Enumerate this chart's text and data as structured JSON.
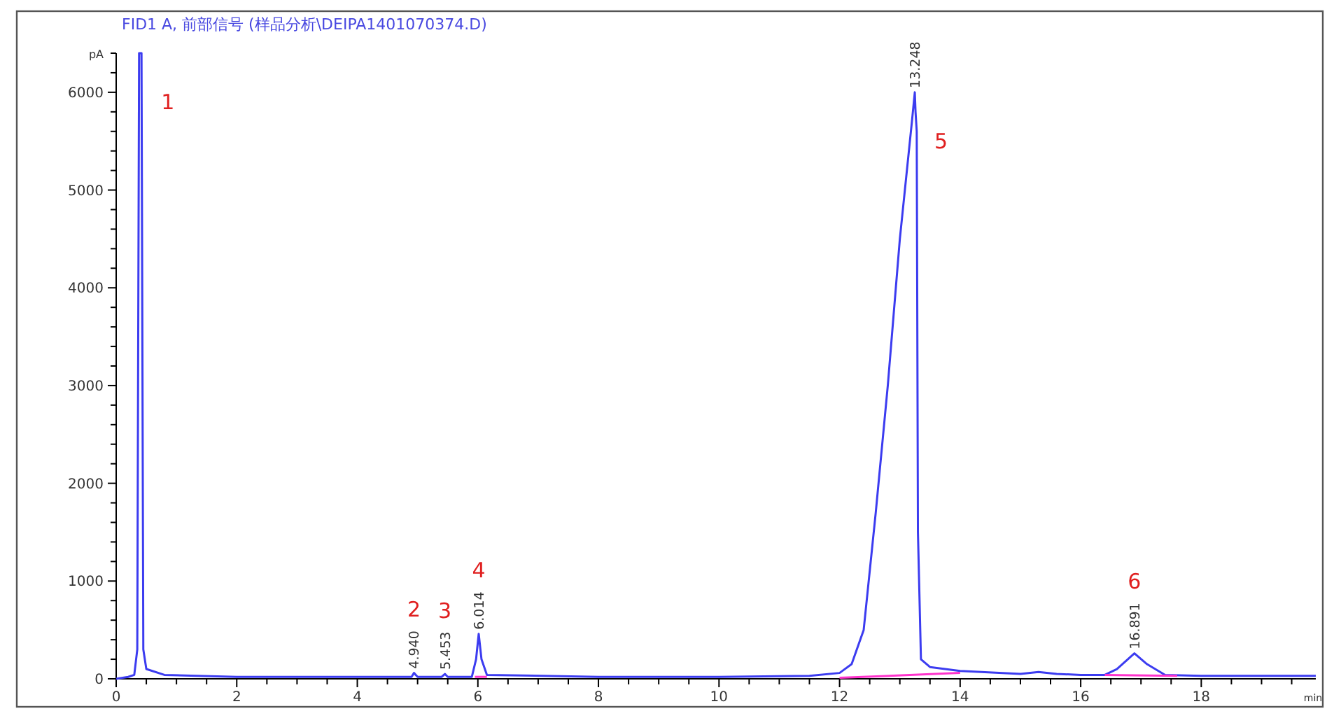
{
  "chart_data": {
    "type": "line",
    "title": "FID1 A, 前部信号 (样品分析\\DEIPA1401070374.D)",
    "xlabel": "min",
    "ylabel": "pA",
    "xlim": [
      0,
      19.9
    ],
    "ylim": [
      0,
      6400
    ],
    "xticks": [
      0,
      {
        "value": 0.5,
        "label": null
      },
      {
        "value": 1,
        "label": null
      },
      {
        "value": 1.5,
        "label": null
      },
      2,
      {
        "value": 2.5,
        "label": null
      },
      {
        "value": 3,
        "label": null
      },
      {
        "value": 3.5,
        "label": null
      },
      4,
      {
        "value": 4.5,
        "label": null
      },
      {
        "value": 5,
        "label": null
      },
      {
        "value": 5.5,
        "label": null
      },
      6,
      {
        "value": 6.5,
        "label": null
      },
      {
        "value": 7,
        "label": null
      },
      {
        "value": 7.5,
        "label": null
      },
      8,
      {
        "value": 8.5,
        "label": null
      },
      {
        "value": 9,
        "label": null
      },
      {
        "value": 9.5,
        "label": null
      },
      10,
      {
        "value": 10.5,
        "label": null
      },
      {
        "value": 11,
        "label": null
      },
      {
        "value": 11.5,
        "label": null
      },
      12,
      {
        "value": 12.5,
        "label": null
      },
      {
        "value": 13,
        "label": null
      },
      {
        "value": 13.5,
        "label": null
      },
      14,
      {
        "value": 14.5,
        "label": null
      },
      {
        "value": 15,
        "label": null
      },
      {
        "value": 15.5,
        "label": null
      },
      16,
      {
        "value": 16.5,
        "label": null
      },
      {
        "value": 17,
        "label": null
      },
      {
        "value": 17.5,
        "label": null
      },
      18,
      {
        "value": 18.5,
        "label": null
      },
      {
        "value": 19,
        "label": null
      },
      {
        "value": 19.5,
        "label": null
      }
    ],
    "yticks": [
      0,
      {
        "value": 200,
        "label": null
      },
      {
        "value": 400,
        "label": null
      },
      {
        "value": 600,
        "label": null
      },
      {
        "value": 800,
        "label": null
      },
      1000,
      {
        "value": 1200,
        "label": null
      },
      {
        "value": 1400,
        "label": null
      },
      {
        "value": 1600,
        "label": null
      },
      {
        "value": 1800,
        "label": null
      },
      2000,
      {
        "value": 2200,
        "label": null
      },
      {
        "value": 2400,
        "label": null
      },
      {
        "value": 2600,
        "label": null
      },
      {
        "value": 2800,
        "label": null
      },
      3000,
      {
        "value": 3200,
        "label": null
      },
      {
        "value": 3400,
        "label": null
      },
      {
        "value": 3600,
        "label": null
      },
      {
        "value": 3800,
        "label": null
      },
      4000,
      {
        "value": 4200,
        "label": null
      },
      {
        "value": 4400,
        "label": null
      },
      {
        "value": 4600,
        "label": null
      },
      {
        "value": 4800,
        "label": null
      },
      5000,
      {
        "value": 5200,
        "label": null
      },
      {
        "value": 5400,
        "label": null
      },
      {
        "value": 5600,
        "label": null
      },
      {
        "value": 5800,
        "label": null
      },
      6000,
      {
        "value": 6200,
        "label": null
      },
      {
        "value": 6400,
        "label": null
      }
    ],
    "grid": false,
    "series": [
      {
        "color": "#3c3cf0",
        "x": [
          0,
          0.2,
          0.3,
          0.35,
          0.38,
          0.42,
          0.45,
          0.5,
          0.8,
          2,
          4,
          4.9,
          4.94,
          5.0,
          5.4,
          5.453,
          5.5,
          5.9,
          5.97,
          6.014,
          6.06,
          6.15,
          8,
          10,
          11.5,
          12.0,
          12.2,
          12.4,
          12.6,
          12.8,
          13.0,
          13.2,
          13.248,
          13.26,
          13.28,
          13.3,
          13.35,
          13.5,
          14,
          15,
          15.3,
          15.6,
          16,
          16.4,
          16.6,
          16.891,
          17.1,
          17.4,
          18,
          19.9
        ],
        "values": [
          0,
          20,
          40,
          300,
          6400,
          6400,
          300,
          100,
          40,
          20,
          20,
          20,
          60,
          20,
          20,
          50,
          20,
          20,
          200,
          460,
          200,
          40,
          20,
          20,
          30,
          60,
          150,
          500,
          1700,
          3000,
          4500,
          5700,
          6000,
          5800,
          5600,
          1500,
          200,
          120,
          80,
          50,
          70,
          50,
          40,
          40,
          100,
          260,
          150,
          40,
          30,
          30
        ]
      },
      {
        "color": "#ff33cc",
        "x": [
          12.0,
          14.0
        ],
        "values": [
          10,
          60
        ]
      },
      {
        "color": "#ff33cc",
        "x": [
          16.4,
          17.6
        ],
        "values": [
          40,
          30
        ]
      },
      {
        "color": "#ff33cc",
        "x": [
          5.95,
          6.15
        ],
        "values": [
          20,
          20
        ]
      }
    ],
    "annotations": [
      {
        "text": "4.940",
        "x": 4.94,
        "y": 60
      },
      {
        "text": "5.453",
        "x": 5.453,
        "y": 50
      },
      {
        "text": "6.014",
        "x": 6.014,
        "y": 460
      },
      {
        "text": "13.248",
        "x": 13.248,
        "y": 6000
      },
      {
        "text": "16.891",
        "x": 16.891,
        "y": 260
      },
      {
        "text": "1",
        "x": 0.42,
        "y": 6400
      },
      {
        "text": "2",
        "x": 4.94,
        "y": 60
      },
      {
        "text": "3",
        "x": 5.453,
        "y": 50
      },
      {
        "text": "4",
        "x": 6.014,
        "y": 460
      },
      {
        "text": "5",
        "x": 13.248,
        "y": 6000
      },
      {
        "text": "6",
        "x": 16.891,
        "y": 260
      }
    ]
  }
}
